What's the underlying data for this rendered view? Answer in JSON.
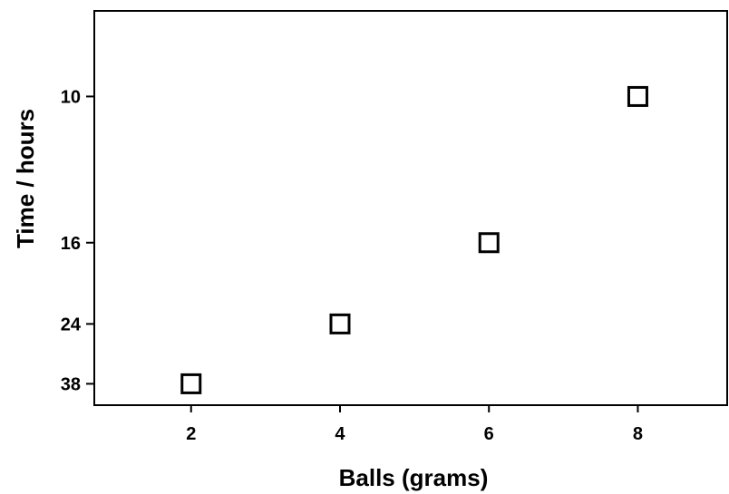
{
  "chart_data": {
    "type": "scatter",
    "title": "",
    "xlabel": "Balls (grams)",
    "ylabel": "Time / hours",
    "x_ticks": [
      2,
      4,
      6,
      8
    ],
    "y_ticks": [
      "10",
      "16",
      "24",
      "38"
    ],
    "x": [
      2,
      4,
      6,
      8
    ],
    "y": [
      38,
      24,
      16,
      10
    ],
    "xlim": [
      0.7,
      9.2
    ],
    "y_axis_scale": "reciprocal",
    "ylim": [
      48,
      8.2
    ],
    "marker": "hollow-square",
    "marker_color": "#000000",
    "grid": false,
    "legend": "none"
  }
}
